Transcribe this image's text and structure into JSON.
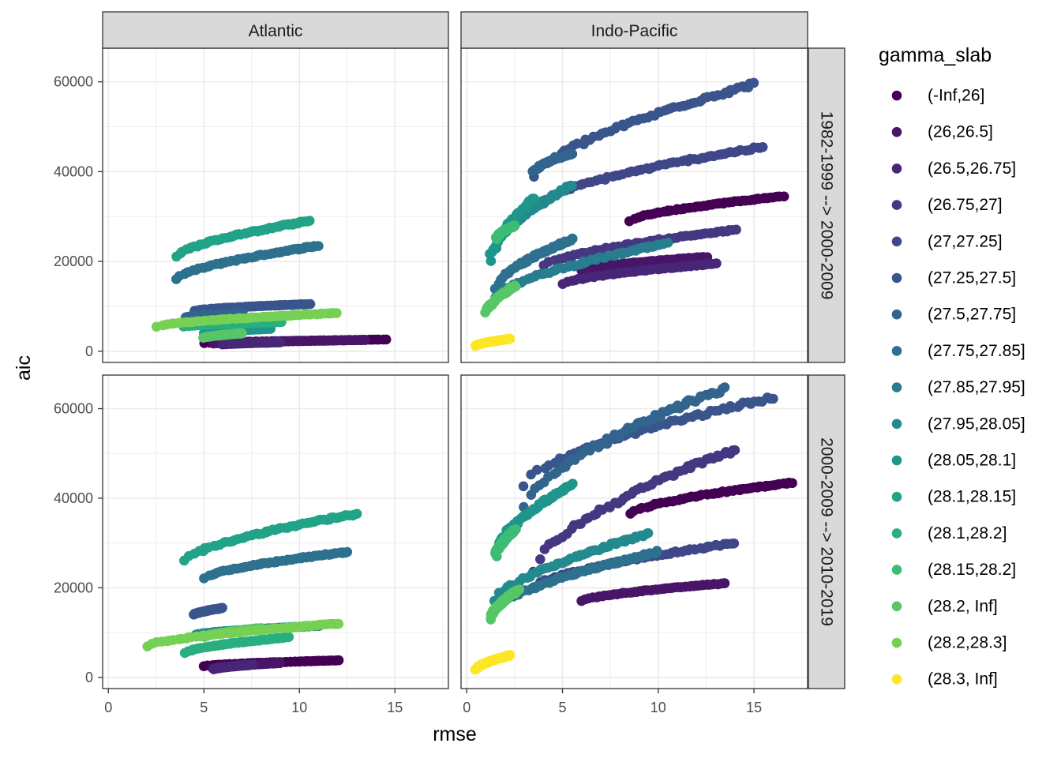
{
  "chart_data": {
    "type": "scatter",
    "facet_cols": [
      "Atlantic",
      "Indo-Pacific"
    ],
    "facet_rows": [
      "1982-1999 --> 2000-2009",
      "2000-2009 --> 2010-2019"
    ],
    "xlabel": "rmse",
    "ylabel": "aic",
    "xlim": [
      -0.3,
      17.8
    ],
    "ylim": [
      -2500,
      67500
    ],
    "xticks": [
      0,
      5,
      10,
      15
    ],
    "yticks": [
      0,
      20000,
      40000,
      60000
    ],
    "grid": true,
    "legend_position": "right",
    "legend": {
      "title": "gamma_slab",
      "entries": [
        {
          "label": "(-Inf,26]",
          "color": "#440154"
        },
        {
          "label": "(26,26.5]",
          "color": "#481568"
        },
        {
          "label": "(26.5,26.75]",
          "color": "#482677"
        },
        {
          "label": "(26.75,27]",
          "color": "#453781"
        },
        {
          "label": "(27,27.25]",
          "color": "#3F4788"
        },
        {
          "label": "(27.25,27.5]",
          "color": "#39558C"
        },
        {
          "label": "(27.5,27.75]",
          "color": "#32648E"
        },
        {
          "label": "(27.75,27.85]",
          "color": "#2D718E"
        },
        {
          "label": "(27.85,27.95]",
          "color": "#287D8E"
        },
        {
          "label": "(27.95,28.05]",
          "color": "#238A8D"
        },
        {
          "label": "(28.05,28.1]",
          "color": "#1F968B"
        },
        {
          "label": "(28.1,28.15]",
          "color": "#20A386"
        },
        {
          "label": "(28.1,28.2]",
          "color": "#29AF7F"
        },
        {
          "label": "(28.15,28.2]",
          "color": "#3CBC75"
        },
        {
          "label": "(28.2, Inf]",
          "color": "#56C667"
        },
        {
          "label": "(28.2,28.3]",
          "color": "#75D054"
        },
        {
          "label": "(28.3, Inf]",
          "color": "#FDE725"
        }
      ]
    },
    "panels": [
      {
        "col": 0,
        "row": 0,
        "series": [
          {
            "g": 0,
            "x": [
              5,
              14.5
            ],
            "y": [
              1800,
              2600
            ]
          },
          {
            "g": 1,
            "x": [
              5.5,
              13.5
            ],
            "y": [
              1700,
              2500
            ]
          },
          {
            "g": 2,
            "x": [
              6,
              9
            ],
            "y": [
              1500,
              2000
            ]
          },
          {
            "g": 5,
            "x": [
              4.5,
              10.5
            ],
            "y": [
              9000,
              10500
            ]
          },
          {
            "g": 6,
            "x": [
              4,
              7
            ],
            "y": [
              7500,
              8500
            ]
          },
          {
            "g": 7,
            "x": [
              3.5,
              11
            ],
            "y": [
              16000,
              23500
            ]
          },
          {
            "g": 10,
            "x": [
              5,
              8.5
            ],
            "y": [
              4000,
              5000
            ]
          },
          {
            "g": 11,
            "x": [
              3.5,
              10.5
            ],
            "y": [
              21000,
              29000
            ]
          },
          {
            "g": 12,
            "x": [
              4,
              9
            ],
            "y": [
              5500,
              6500
            ]
          },
          {
            "g": 14,
            "x": [
              5,
              7
            ],
            "y": [
              3000,
              4000
            ]
          },
          {
            "g": 15,
            "x": [
              2.5,
              12
            ],
            "y": [
              5500,
              8500
            ]
          }
        ]
      },
      {
        "col": 1,
        "row": 0,
        "series": [
          {
            "g": 0,
            "x": [
              8.5,
              16.5
            ],
            "y": [
              29000,
              34500
            ]
          },
          {
            "g": 1,
            "x": [
              6,
              12.5
            ],
            "y": [
              18000,
              21000
            ]
          },
          {
            "g": 2,
            "x": [
              5,
              13
            ],
            "y": [
              15000,
              19500
            ]
          },
          {
            "g": 3,
            "x": [
              4,
              14
            ],
            "y": [
              19000,
              27000
            ]
          },
          {
            "g": 4,
            "x": [
              4,
              15.5
            ],
            "y": [
              33000,
              45500
            ]
          },
          {
            "g": 5,
            "x": [
              3.5,
              15
            ],
            "y": [
              38500,
              59500
            ]
          },
          {
            "g": 6,
            "x": [
              3.5,
              5.5
            ],
            "y": [
              40000,
              44000
            ]
          },
          {
            "g": 7,
            "x": [
              1.5,
              5.5
            ],
            "y": [
              14000,
              25000
            ]
          },
          {
            "g": 8,
            "x": [
              1.5,
              10.5
            ],
            "y": [
              12000,
              24000
            ]
          },
          {
            "g": 9,
            "x": [
              1.5,
              5.5
            ],
            "y": [
              23000,
              37000
            ]
          },
          {
            "g": 10,
            "x": [
              1.2,
              3.5
            ],
            "y": [
              20000,
              34000
            ]
          },
          {
            "g": 13,
            "x": [
              1.5,
              2.5
            ],
            "y": [
              25000,
              28000
            ]
          },
          {
            "g": 14,
            "x": [
              1,
              2.5
            ],
            "y": [
              8500,
              14500
            ]
          },
          {
            "g": 16,
            "x": [
              0.5,
              2.3
            ],
            "y": [
              1200,
              2800
            ]
          }
        ]
      },
      {
        "col": 0,
        "row": 1,
        "series": [
          {
            "g": 0,
            "x": [
              5,
              12
            ],
            "y": [
              2500,
              3800
            ]
          },
          {
            "g": 1,
            "x": [
              5.5,
              9
            ],
            "y": [
              2000,
              3200
            ]
          },
          {
            "g": 2,
            "x": [
              5.5,
              7.5
            ],
            "y": [
              1800,
              2800
            ]
          },
          {
            "g": 5,
            "x": [
              4.5,
              6
            ],
            "y": [
              14000,
              15500
            ]
          },
          {
            "g": 7,
            "x": [
              5,
              12.5
            ],
            "y": [
              22000,
              28000
            ]
          },
          {
            "g": 9,
            "x": [
              4.5,
              11
            ],
            "y": [
              9500,
              11500
            ]
          },
          {
            "g": 11,
            "x": [
              4,
              13
            ],
            "y": [
              26000,
              36500
            ]
          },
          {
            "g": 12,
            "x": [
              4,
              9.5
            ],
            "y": [
              5500,
              9000
            ]
          },
          {
            "g": 14,
            "x": [
              5,
              8
            ],
            "y": [
              9000,
              11000
            ]
          },
          {
            "g": 15,
            "x": [
              2,
              12
            ],
            "y": [
              7000,
              12000
            ]
          }
        ]
      },
      {
        "col": 1,
        "row": 1,
        "series": [
          {
            "g": 0,
            "x": [
              8.5,
              17
            ],
            "y": [
              36500,
              43500
            ]
          },
          {
            "g": 1,
            "x": [
              6,
              13.5
            ],
            "y": [
              17000,
              21000
            ]
          },
          {
            "g": 3,
            "x": [
              3.5,
              14
            ],
            "y": [
              24000,
              51000
            ]
          },
          {
            "g": 4,
            "x": [
              3.5,
              14
            ],
            "y": [
              20000,
              30000
            ]
          },
          {
            "g": 5,
            "x": [
              3,
              16
            ],
            "y": [
              43000,
              62500
            ]
          },
          {
            "g": 6,
            "x": [
              3,
              13.5
            ],
            "y": [
              38000,
              64500
            ]
          },
          {
            "g": 7,
            "x": [
              1.5,
              10
            ],
            "y": [
              15000,
              28000
            ]
          },
          {
            "g": 9,
            "x": [
              1.5,
              9.5
            ],
            "y": [
              17000,
              32000
            ]
          },
          {
            "g": 10,
            "x": [
              1.5,
              5.5
            ],
            "y": [
              28000,
              43000
            ]
          },
          {
            "g": 13,
            "x": [
              1.5,
              2.5
            ],
            "y": [
              27000,
              33000
            ]
          },
          {
            "g": 14,
            "x": [
              1.2,
              2.7
            ],
            "y": [
              13000,
              19500
            ]
          },
          {
            "g": 16,
            "x": [
              0.5,
              2.3
            ],
            "y": [
              1800,
              5000
            ]
          }
        ]
      }
    ]
  }
}
